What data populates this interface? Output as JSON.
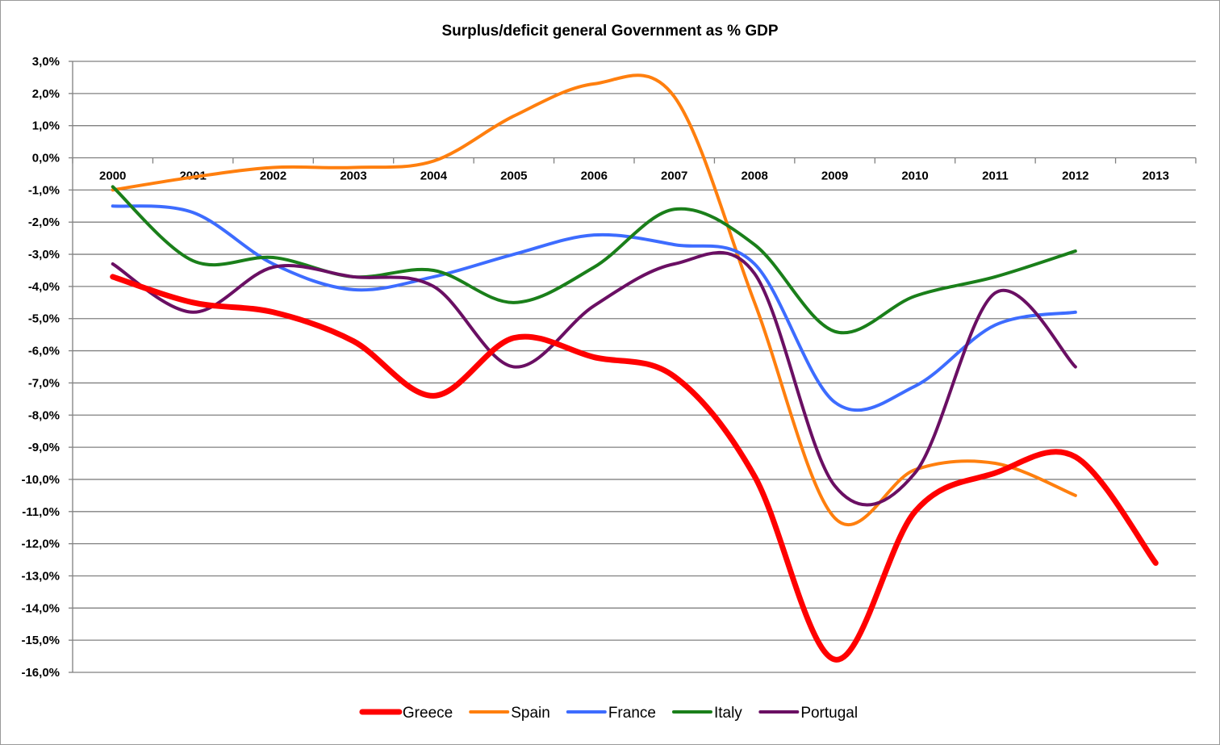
{
  "chart_data": {
    "type": "line",
    "title": "Surplus/deficit general Government as % GDP",
    "xlabel": "",
    "ylabel": "",
    "categories": [
      "2000",
      "2001",
      "2002",
      "2003",
      "2004",
      "2005",
      "2006",
      "2007",
      "2008",
      "2009",
      "2010",
      "2011",
      "2012",
      "2013"
    ],
    "y_tick_labels": [
      "3,0%",
      "2,0%",
      "1,0%",
      "0,0%",
      "-1,0%",
      "-2,0%",
      "-3,0%",
      "-4,0%",
      "-5,0%",
      "-6,0%",
      "-7,0%",
      "-8,0%",
      "-9,0%",
      "-10,0%",
      "-11,0%",
      "-12,0%",
      "-13,0%",
      "-14,0%",
      "-15,0%",
      "-16,0%"
    ],
    "ylim": [
      -16,
      3
    ],
    "grid": true,
    "legend_position": "bottom",
    "series": [
      {
        "name": "Greece",
        "color": "#ff0000",
        "values": [
          -3.7,
          -4.5,
          -4.8,
          -5.7,
          -7.4,
          -5.6,
          -6.2,
          -6.8,
          -9.9,
          -15.6,
          -11.0,
          -9.8,
          -9.3,
          -12.6
        ]
      },
      {
        "name": "Spain",
        "color": "#ff7f0e",
        "values": [
          -1.0,
          -0.6,
          -0.3,
          -0.3,
          -0.1,
          1.3,
          2.3,
          1.9,
          -4.5,
          -11.2,
          -9.7,
          -9.5,
          -10.5,
          null
        ]
      },
      {
        "name": "France",
        "color": "#3d6cff",
        "values": [
          -1.5,
          -1.7,
          -3.3,
          -4.1,
          -3.7,
          -3.0,
          -2.4,
          -2.7,
          -3.3,
          -7.6,
          -7.1,
          -5.2,
          -4.8,
          null
        ]
      },
      {
        "name": "Italy",
        "color": "#1a7f1a",
        "values": [
          -0.9,
          -3.2,
          -3.1,
          -3.7,
          -3.5,
          -4.5,
          -3.4,
          -1.6,
          -2.7,
          -5.4,
          -4.3,
          -3.7,
          -2.9,
          null
        ]
      },
      {
        "name": "Portugal",
        "color": "#6a0f63",
        "values": [
          -3.3,
          -4.8,
          -3.4,
          -3.7,
          -4.0,
          -6.5,
          -4.6,
          -3.3,
          -3.6,
          -10.2,
          -9.8,
          -4.2,
          -6.5,
          null
        ]
      }
    ]
  }
}
